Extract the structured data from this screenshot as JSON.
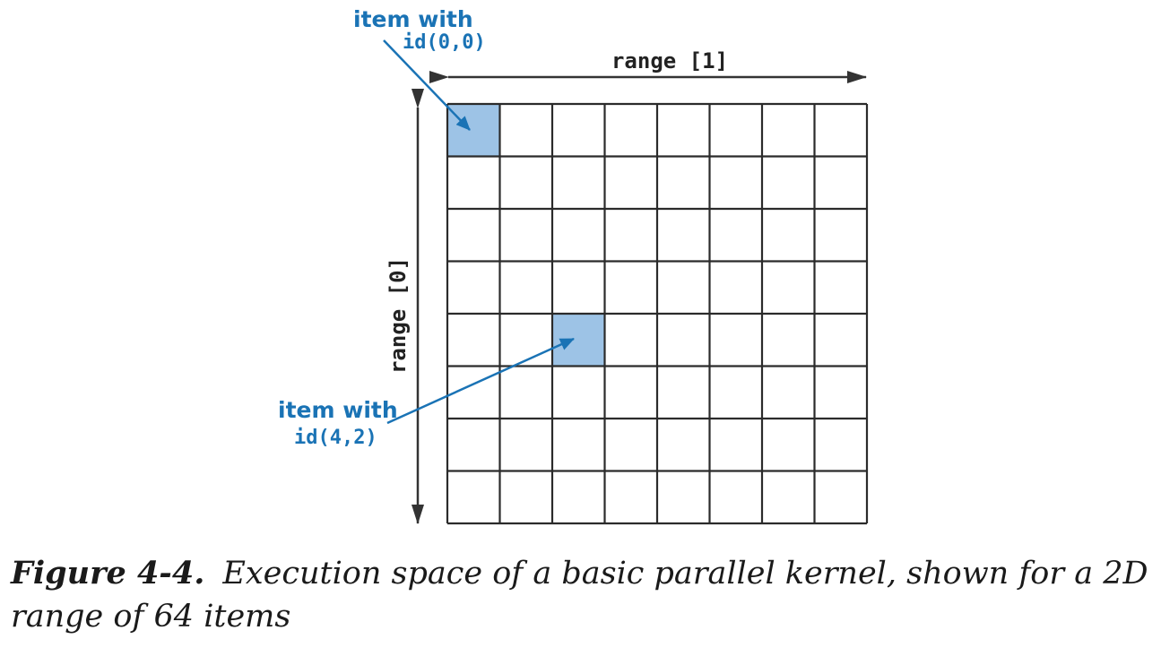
{
  "diagram": {
    "grid_rows": 8,
    "grid_cols": 8,
    "highlighted_cells": [
      [
        0,
        0
      ],
      [
        4,
        2
      ]
    ],
    "axis_horizontal_label": "range [1]",
    "axis_vertical_label": "range [0]",
    "callouts": [
      {
        "line1": "item with",
        "line2": "id(0,0)"
      },
      {
        "line1": "item with",
        "line2": "id(4,2)"
      }
    ],
    "colors": {
      "grid_line": "#2b2b2b",
      "highlight_fill": "#9dc3e6",
      "callout": "#1a73b5",
      "axis": "#333333"
    }
  },
  "caption": {
    "label": "Figure 4-4.",
    "text": "Execution space of a basic parallel kernel, shown for a 2D range of 64 items"
  }
}
